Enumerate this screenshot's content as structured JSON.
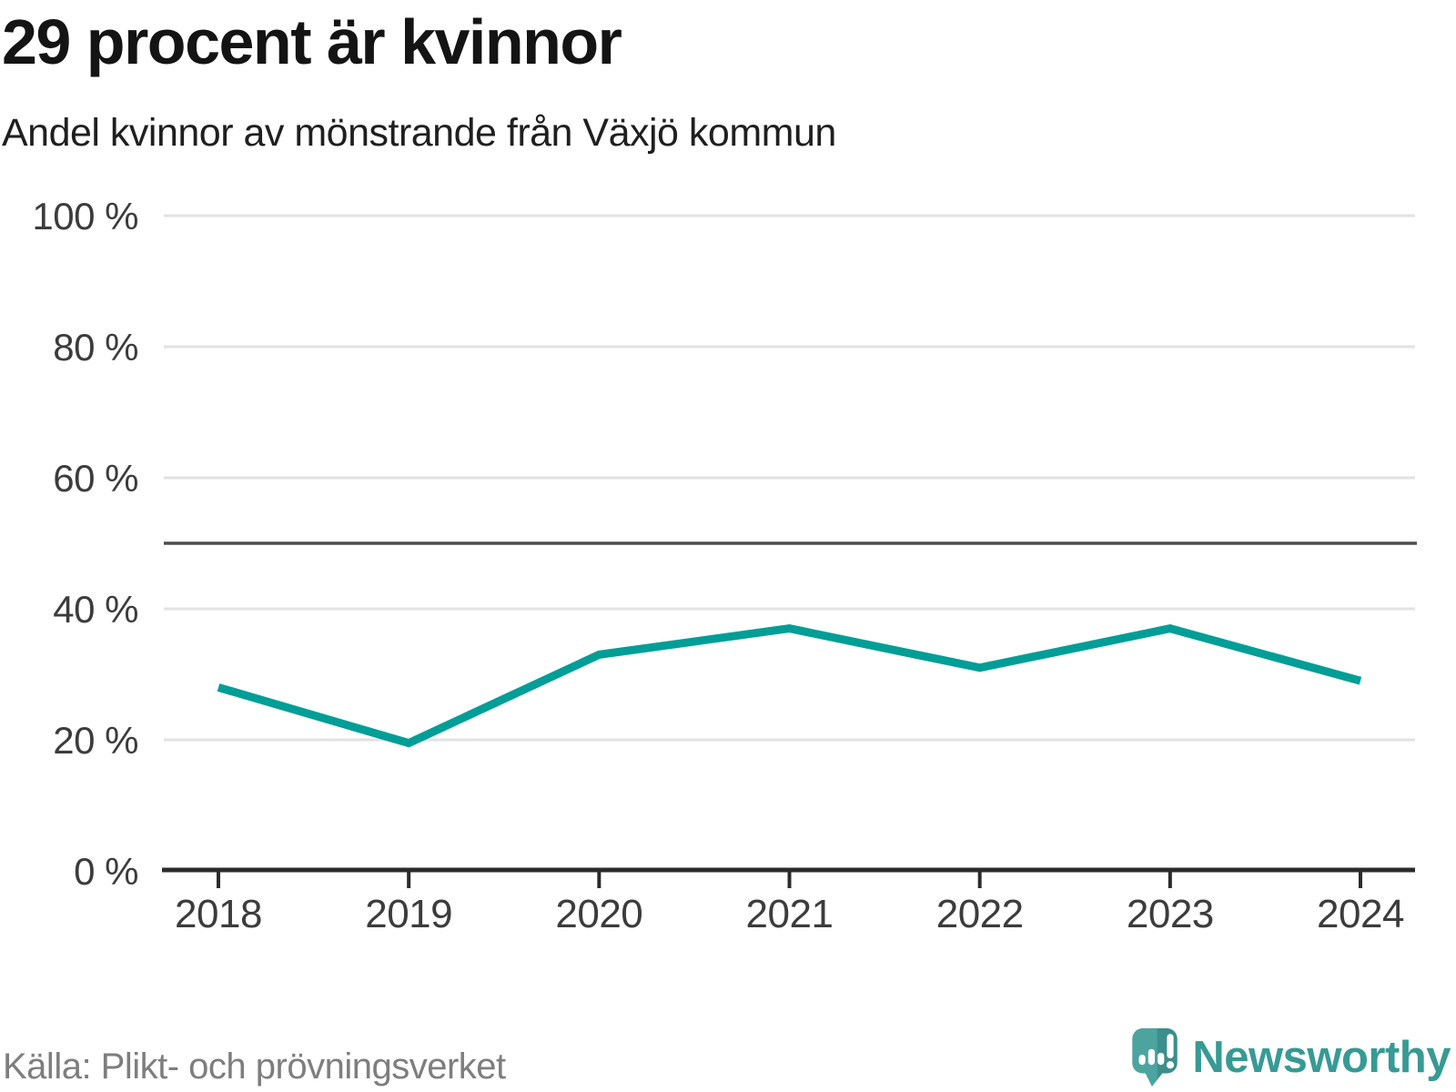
{
  "header": {
    "title": "29 procent är kvinnor",
    "subtitle": "Andel kvinnor av mönstrande från Växjö kommun"
  },
  "chart_data": {
    "type": "line",
    "title": "29 procent är kvinnor",
    "subtitle": "Andel kvinnor av mönstrande från Växjö kommun",
    "categories": [
      "2018",
      "2019",
      "2020",
      "2021",
      "2022",
      "2023",
      "2024"
    ],
    "series": [
      {
        "name": "Andel kvinnor av mönstrande",
        "values": [
          28,
          19.5,
          33,
          37,
          31,
          37,
          29
        ]
      }
    ],
    "xlabel": "",
    "ylabel": "",
    "ylim": [
      0,
      100
    ],
    "yticks": [
      {
        "value": 0,
        "label": "0 %"
      },
      {
        "value": 20,
        "label": "20 %"
      },
      {
        "value": 40,
        "label": "40 %"
      },
      {
        "value": 60,
        "label": "60 %"
      },
      {
        "value": 80,
        "label": "80 %"
      },
      {
        "value": 100,
        "label": "100 %"
      }
    ],
    "reference_line": {
      "value": 50
    },
    "grid": true,
    "legend": "none",
    "unit": "%"
  },
  "footer": {
    "source": "Källa: Plikt- och prövningsverket",
    "brand": "Newsworthy"
  },
  "icons": {
    "brand_logo": "newsworthy-speech-bubble-bar-chart-icon"
  },
  "colors": {
    "line": "#009e96",
    "grid": "#e2e2e2",
    "reference": "#4d4d4d",
    "axis": "#2b2b2b",
    "tick_label": "#3c3c3c",
    "title_text": "#141414",
    "source_text": "#7e7e7e",
    "brand_teal": "#379a94",
    "logo_fill_light": "#4da49f",
    "logo_fill_dark": "#3b8f8d"
  }
}
